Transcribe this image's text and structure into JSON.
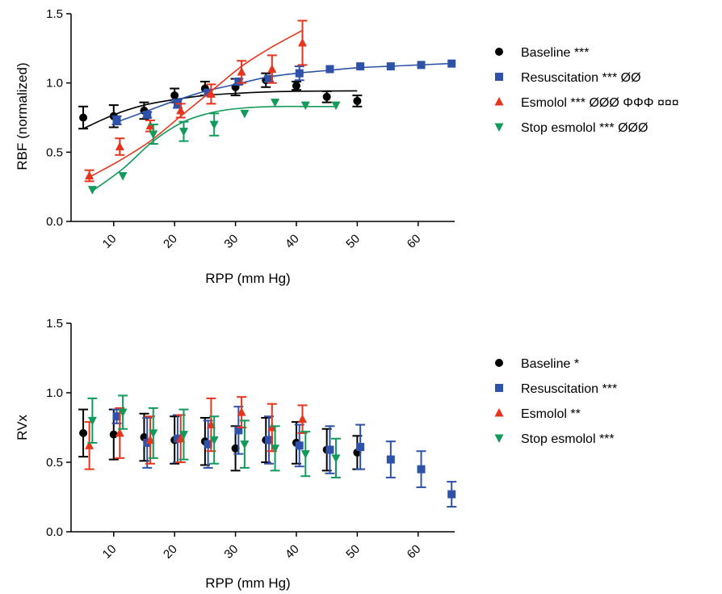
{
  "colors": {
    "baseline": "#000000",
    "resuscitation": "#2e52a8",
    "esmolol": "#e8341c",
    "stop_esmolol": "#119a5a",
    "axis": "#000000"
  },
  "chart_data": [
    {
      "type": "scatter",
      "id": "rbf",
      "title": "",
      "xlabel": "RPP (mm Hg)",
      "ylabel": "RBF (normalized)",
      "xlim": [
        3,
        66
      ],
      "ylim": [
        0,
        1.5
      ],
      "xticks": [
        10,
        20,
        30,
        40,
        50,
        60
      ],
      "yticks": [
        0.0,
        0.5,
        1.0,
        1.5
      ],
      "yticklabels": [
        "0.0",
        "0.5",
        "1.0",
        "1.5"
      ],
      "x_tick_rotation": -45,
      "legend_position": "right",
      "series": [
        {
          "name": "Baseline ***",
          "key": "baseline",
          "marker": "circle",
          "x": [
            5,
            10,
            15,
            20,
            25,
            30,
            35,
            40,
            45,
            50
          ],
          "y": [
            0.75,
            0.76,
            0.8,
            0.91,
            0.96,
            0.97,
            1.02,
            0.98,
            0.9,
            0.87
          ],
          "err": [
            0.08,
            0.08,
            0.06,
            0.05,
            0.05,
            0.06,
            0.05,
            0.03,
            0.04,
            0.04
          ],
          "fit": {
            "x": [
              5,
              10,
              15,
              20,
              25,
              30,
              35,
              40,
              45,
              50
            ],
            "y": [
              0.67,
              0.77,
              0.84,
              0.88,
              0.91,
              0.925,
              0.935,
              0.94,
              0.942,
              0.943
            ]
          }
        },
        {
          "name": "Resuscitation *** ØØ",
          "key": "resuscitation",
          "marker": "square",
          "x": [
            10.5,
            15.5,
            20.5,
            25.5,
            30.5,
            35.5,
            40.5,
            45.5,
            50.5,
            55.5,
            60.5,
            65.5
          ],
          "y": [
            0.73,
            0.77,
            0.85,
            0.93,
            1.01,
            1.03,
            1.07,
            1.1,
            1.12,
            1.12,
            1.13,
            1.14
          ],
          "err": [
            0.03,
            0.02,
            0.03,
            0.02,
            0.02,
            0.02,
            0.05,
            0.0,
            0.0,
            0.0,
            0.0,
            0.0
          ],
          "fit": {
            "x": [
              10,
              15,
              20,
              25,
              30,
              35,
              40,
              45,
              50,
              55,
              60,
              65
            ],
            "y": [
              0.71,
              0.79,
              0.87,
              0.94,
              0.99,
              1.04,
              1.07,
              1.09,
              1.11,
              1.12,
              1.13,
              1.14
            ]
          }
        },
        {
          "name": "Esmolol *** ØØØ ΦΦΦ ¤¤¤",
          "key": "esmolol",
          "marker": "triangle-up",
          "x": [
            6,
            11,
            16,
            21,
            26,
            31,
            36,
            41
          ],
          "y": [
            0.33,
            0.54,
            0.69,
            0.8,
            0.92,
            1.08,
            1.1,
            1.29
          ],
          "err": [
            0.04,
            0.06,
            0.04,
            0.05,
            0.07,
            0.08,
            0.1,
            0.16
          ],
          "fit": {
            "x": [
              6,
              11,
              16,
              21,
              26,
              31,
              36,
              41
            ],
            "y": [
              0.32,
              0.44,
              0.58,
              0.76,
              0.94,
              1.12,
              1.26,
              1.38
            ]
          }
        },
        {
          "name": "Stop esmolol *** ØØØ",
          "key": "stop_esmolol",
          "marker": "triangle-down",
          "x": [
            6.5,
            11.5,
            16.5,
            21.5,
            26.5,
            31.5,
            36.5,
            41.5,
            46.5
          ],
          "y": [
            0.23,
            0.33,
            0.63,
            0.65,
            0.7,
            0.78,
            0.86,
            0.84,
            0.84
          ],
          "err": [
            0.0,
            0.0,
            0.07,
            0.07,
            0.08,
            0.0,
            0.0,
            0.0,
            0.0
          ],
          "fit": {
            "x": [
              6.5,
              11.5,
              16.5,
              21.5,
              26.5,
              31.5,
              36.5,
              41.5,
              46.5
            ],
            "y": [
              0.22,
              0.38,
              0.58,
              0.72,
              0.79,
              0.82,
              0.83,
              0.83,
              0.83
            ]
          }
        }
      ]
    },
    {
      "type": "scatter",
      "id": "rvx",
      "title": "",
      "xlabel": "RPP (mm Hg)",
      "ylabel": "RVx",
      "xlim": [
        3,
        66
      ],
      "ylim": [
        0,
        1.5
      ],
      "xticks": [
        10,
        20,
        30,
        40,
        50,
        60
      ],
      "yticks": [
        0.0,
        0.5,
        1.0,
        1.5
      ],
      "yticklabels": [
        "0.0",
        "0.5",
        "1.0",
        "1.5"
      ],
      "x_tick_rotation": -45,
      "legend_position": "right",
      "series": [
        {
          "name": "Baseline *",
          "key": "baseline",
          "marker": "circle",
          "x": [
            5,
            10,
            15,
            20,
            25,
            30,
            35,
            40,
            45,
            50
          ],
          "y": [
            0.71,
            0.7,
            0.68,
            0.66,
            0.65,
            0.6,
            0.66,
            0.64,
            0.59,
            0.57
          ],
          "err": [
            0.17,
            0.18,
            0.17,
            0.17,
            0.17,
            0.16,
            0.16,
            0.15,
            0.15,
            0.12
          ]
        },
        {
          "name": "Resuscitation ***",
          "key": "resuscitation",
          "marker": "square",
          "x": [
            10.5,
            15.5,
            20.5,
            25.5,
            30.5,
            35.5,
            40.5,
            45.5,
            50.5,
            55.5,
            60.5,
            65.5
          ],
          "y": [
            0.83,
            0.64,
            0.67,
            0.63,
            0.73,
            0.66,
            0.62,
            0.59,
            0.61,
            0.52,
            0.45,
            0.27
          ],
          "err": [
            0.05,
            0.18,
            0.17,
            0.17,
            0.17,
            0.17,
            0.15,
            0.17,
            0.16,
            0.13,
            0.13,
            0.09
          ]
        },
        {
          "name": "Esmolol **",
          "key": "esmolol",
          "marker": "triangle-up",
          "x": [
            6,
            11,
            16,
            21,
            26,
            31,
            36,
            41
          ],
          "y": [
            0.62,
            0.71,
            0.66,
            0.67,
            0.77,
            0.86,
            0.75,
            0.81
          ],
          "err": [
            0.17,
            0.18,
            0.17,
            0.17,
            0.19,
            0.11,
            0.17,
            0.1
          ]
        },
        {
          "name": "Stop esmolol ***",
          "key": "stop_esmolol",
          "marker": "triangle-down",
          "x": [
            6.5,
            11.5,
            16.5,
            21.5,
            26.5,
            31.5,
            36.5,
            41.5,
            46.5
          ],
          "y": [
            0.8,
            0.86,
            0.71,
            0.7,
            0.66,
            0.63,
            0.6,
            0.56,
            0.53
          ],
          "err": [
            0.16,
            0.12,
            0.18,
            0.18,
            0.17,
            0.17,
            0.16,
            0.16,
            0.14
          ]
        }
      ]
    }
  ]
}
